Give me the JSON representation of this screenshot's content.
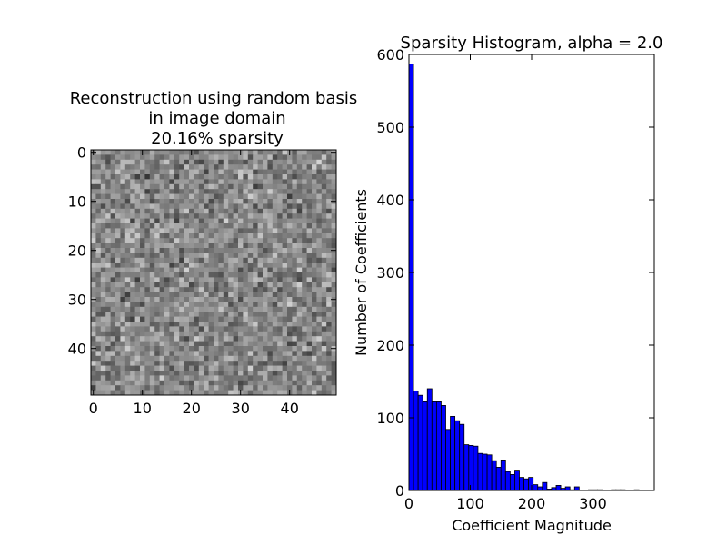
{
  "chart_data": [
    {
      "type": "heatmap",
      "title_lines": [
        "Reconstruction using random basis",
        "in image domain",
        "20.16% sparsity"
      ],
      "xlabel": "",
      "ylabel": "",
      "size": [
        50,
        50
      ],
      "colormap": "gray",
      "x_ticks": [
        0,
        10,
        20,
        30,
        40
      ],
      "y_ticks": [
        0,
        10,
        20,
        30,
        40
      ]
    },
    {
      "type": "bar",
      "title": "Sparsity Histogram, alpha = 2.0",
      "xlabel": "Coefficient Magnitude",
      "ylabel": "Number of Coefficients",
      "xlim": [
        0,
        400
      ],
      "ylim": [
        0,
        600
      ],
      "x_ticks": [
        0,
        100,
        200,
        300
      ],
      "y_ticks": [
        0,
        100,
        200,
        300,
        400,
        500,
        600
      ],
      "bin_width": 7.5,
      "bin_start": 0,
      "values": [
        587,
        137,
        131,
        122,
        140,
        122,
        122,
        117,
        84,
        102,
        96,
        91,
        63,
        62,
        61,
        51,
        50,
        49,
        41,
        32,
        42,
        26,
        22,
        28,
        18,
        16,
        18,
        8,
        5,
        11,
        2,
        4,
        7,
        3,
        5,
        1,
        5,
        0,
        0,
        1,
        1,
        1,
        0,
        0,
        1,
        1,
        1,
        0,
        0,
        1
      ],
      "bar_color": "#0000ff"
    }
  ]
}
